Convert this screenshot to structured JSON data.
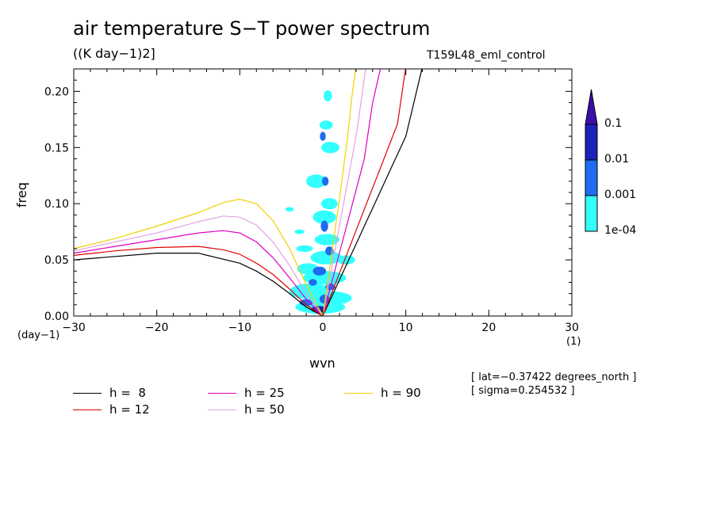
{
  "chart_data": {
    "type": "contour",
    "title": "air temperature S−T power spectrum",
    "subtitle": "((K day−1)2]",
    "run_id": "T159L48_eml_control",
    "xlabel": "wvn",
    "ylabel": "freq",
    "x_units": "(1)",
    "y_units": "(day−1)",
    "xlim": [
      -30,
      30
    ],
    "ylim": [
      0,
      0.22
    ],
    "x_ticks": [
      -30,
      -20,
      -10,
      0,
      10,
      20,
      30
    ],
    "x_tick_labels": [
      "−30",
      "−20",
      "−10",
      "0",
      "10",
      "20",
      "30"
    ],
    "y_ticks": [
      0.0,
      0.05,
      0.1,
      0.15,
      0.2
    ],
    "y_tick_labels": [
      "0.00",
      "0.05",
      "0.10",
      "0.15",
      "0.20"
    ],
    "colorbar": {
      "levels": [
        "1e-04",
        "0.001",
        "0.01",
        "0.1"
      ],
      "colors": [
        "#33ffff",
        "#1e6cf0",
        "#1a22b8",
        "#3a0fa8"
      ]
    },
    "dispersion_curves": [
      {
        "name": "h =  8",
        "color": "#000000",
        "kelvin": [
          [
            0,
            0
          ],
          [
            1,
            0.016
          ],
          [
            2,
            0.032
          ],
          [
            3,
            0.048
          ],
          [
            4,
            0.064
          ],
          [
            5,
            0.08
          ],
          [
            6,
            0.096
          ],
          [
            8,
            0.128
          ],
          [
            10,
            0.16
          ],
          [
            12,
            0.222
          ]
        ],
        "rossby": [
          [
            -30,
            0.05
          ],
          [
            -25,
            0.053
          ],
          [
            -20,
            0.056
          ],
          [
            -15,
            0.056
          ],
          [
            -10,
            0.047
          ],
          [
            -8,
            0.04
          ],
          [
            -6,
            0.031
          ],
          [
            -4,
            0.02
          ],
          [
            -2,
            0.008
          ],
          [
            0,
            0
          ]
        ]
      },
      {
        "name": "h = 12",
        "color": "#e00000",
        "kelvin": [
          [
            0,
            0
          ],
          [
            1,
            0.019
          ],
          [
            2,
            0.038
          ],
          [
            3,
            0.057
          ],
          [
            4,
            0.076
          ],
          [
            5,
            0.095
          ],
          [
            6,
            0.114
          ],
          [
            7,
            0.133
          ],
          [
            8,
            0.152
          ],
          [
            9,
            0.171
          ],
          [
            10,
            0.222
          ]
        ],
        "rossby": [
          [
            -30,
            0.054
          ],
          [
            -25,
            0.058
          ],
          [
            -20,
            0.061
          ],
          [
            -15,
            0.062
          ],
          [
            -12,
            0.059
          ],
          [
            -10,
            0.055
          ],
          [
            -8,
            0.047
          ],
          [
            -6,
            0.037
          ],
          [
            -4,
            0.024
          ],
          [
            -2,
            0.01
          ],
          [
            0,
            0
          ]
        ]
      },
      {
        "name": "h = 25",
        "color": "#e000c0",
        "kelvin": [
          [
            0,
            0
          ],
          [
            1,
            0.028
          ],
          [
            2,
            0.056
          ],
          [
            3,
            0.084
          ],
          [
            4,
            0.112
          ],
          [
            5,
            0.14
          ],
          [
            6,
            0.19
          ],
          [
            7,
            0.222
          ]
        ],
        "rossby": [
          [
            -30,
            0.056
          ],
          [
            -25,
            0.062
          ],
          [
            -20,
            0.068
          ],
          [
            -15,
            0.074
          ],
          [
            -12,
            0.076
          ],
          [
            -10,
            0.074
          ],
          [
            -8,
            0.066
          ],
          [
            -6,
            0.052
          ],
          [
            -4,
            0.034
          ],
          [
            -2,
            0.015
          ],
          [
            0,
            0
          ]
        ]
      },
      {
        "name": "h = 50",
        "color": "#e2a2e2",
        "kelvin": [
          [
            0,
            0
          ],
          [
            1,
            0.04
          ],
          [
            2,
            0.08
          ],
          [
            3,
            0.12
          ],
          [
            4,
            0.16
          ],
          [
            4.6,
            0.19
          ],
          [
            5.2,
            0.222
          ]
        ],
        "rossby": [
          [
            -30,
            0.058
          ],
          [
            -25,
            0.066
          ],
          [
            -20,
            0.074
          ],
          [
            -15,
            0.084
          ],
          [
            -12,
            0.089
          ],
          [
            -10,
            0.088
          ],
          [
            -8,
            0.081
          ],
          [
            -6,
            0.066
          ],
          [
            -4,
            0.045
          ],
          [
            -2,
            0.02
          ],
          [
            0,
            0
          ]
        ]
      },
      {
        "name": "h = 90",
        "color": "#f2d000",
        "kelvin": [
          [
            0,
            0
          ],
          [
            1,
            0.052
          ],
          [
            2,
            0.104
          ],
          [
            3,
            0.16
          ],
          [
            3.5,
            0.195
          ],
          [
            4,
            0.222
          ]
        ],
        "rossby": [
          [
            -30,
            0.06
          ],
          [
            -25,
            0.069
          ],
          [
            -20,
            0.08
          ],
          [
            -15,
            0.092
          ],
          [
            -12,
            0.101
          ],
          [
            -10,
            0.104
          ],
          [
            -8,
            0.1
          ],
          [
            -6,
            0.085
          ],
          [
            -4,
            0.06
          ],
          [
            -2,
            0.028
          ],
          [
            0,
            0
          ]
        ]
      }
    ],
    "power_blobs": [
      {
        "x": 0.6,
        "y": 0.196,
        "w": 1.0,
        "h": 0.01,
        "level": 0
      },
      {
        "x": 0.4,
        "y": 0.17,
        "w": 1.6,
        "h": 0.008,
        "level": 0
      },
      {
        "x": 0.9,
        "y": 0.15,
        "w": 2.2,
        "h": 0.01,
        "level": 0
      },
      {
        "x": -0.8,
        "y": 0.12,
        "w": 2.4,
        "h": 0.012,
        "level": 0
      },
      {
        "x": 0.8,
        "y": 0.1,
        "w": 2.0,
        "h": 0.01,
        "level": 0
      },
      {
        "x": -4.0,
        "y": 0.095,
        "w": 1.0,
        "h": 0.004,
        "level": 0
      },
      {
        "x": -2.8,
        "y": 0.075,
        "w": 1.2,
        "h": 0.004,
        "level": 0
      },
      {
        "x": 0.2,
        "y": 0.088,
        "w": 2.8,
        "h": 0.012,
        "level": 0
      },
      {
        "x": 0.5,
        "y": 0.068,
        "w": 3.0,
        "h": 0.01,
        "level": 0
      },
      {
        "x": -2.2,
        "y": 0.06,
        "w": 2.0,
        "h": 0.006,
        "level": 0
      },
      {
        "x": 0.4,
        "y": 0.052,
        "w": 3.8,
        "h": 0.012,
        "level": 0
      },
      {
        "x": 2.8,
        "y": 0.05,
        "w": 2.2,
        "h": 0.008,
        "level": 0
      },
      {
        "x": -1.8,
        "y": 0.042,
        "w": 2.6,
        "h": 0.01,
        "level": 0
      },
      {
        "x": 0.2,
        "y": 0.034,
        "w": 5.2,
        "h": 0.012,
        "level": 0
      },
      {
        "x": -1.5,
        "y": 0.022,
        "w": 5.0,
        "h": 0.014,
        "level": 0
      },
      {
        "x": 1.0,
        "y": 0.016,
        "w": 5.0,
        "h": 0.012,
        "level": 0
      },
      {
        "x": -0.3,
        "y": 0.008,
        "w": 6.0,
        "h": 0.012,
        "level": 0
      },
      {
        "x": 0.0,
        "y": 0.16,
        "w": 0.7,
        "h": 0.008,
        "level": 1
      },
      {
        "x": 0.3,
        "y": 0.12,
        "w": 0.8,
        "h": 0.008,
        "level": 1
      },
      {
        "x": 0.2,
        "y": 0.08,
        "w": 0.9,
        "h": 0.01,
        "level": 1
      },
      {
        "x": 0.8,
        "y": 0.058,
        "w": 1.0,
        "h": 0.008,
        "level": 1
      },
      {
        "x": -0.4,
        "y": 0.04,
        "w": 1.6,
        "h": 0.008,
        "level": 1
      },
      {
        "x": -1.2,
        "y": 0.03,
        "w": 1.0,
        "h": 0.006,
        "level": 1
      },
      {
        "x": 0.9,
        "y": 0.026,
        "w": 1.2,
        "h": 0.006,
        "level": 1
      },
      {
        "x": -2.0,
        "y": 0.012,
        "w": 1.6,
        "h": 0.006,
        "level": 1
      },
      {
        "x": 0.2,
        "y": 0.015,
        "w": 1.2,
        "h": 0.008,
        "level": 1
      },
      {
        "x": -0.5,
        "y": 0.006,
        "w": 1.8,
        "h": 0.006,
        "level": 2
      }
    ],
    "legend": [
      "h =  8",
      "h = 12",
      "h = 25",
      "h = 50",
      "h = 90"
    ],
    "annotations": [
      "[ lat=−0.37422 degrees_north ]",
      "[ sigma=0.254532 ]"
    ]
  }
}
